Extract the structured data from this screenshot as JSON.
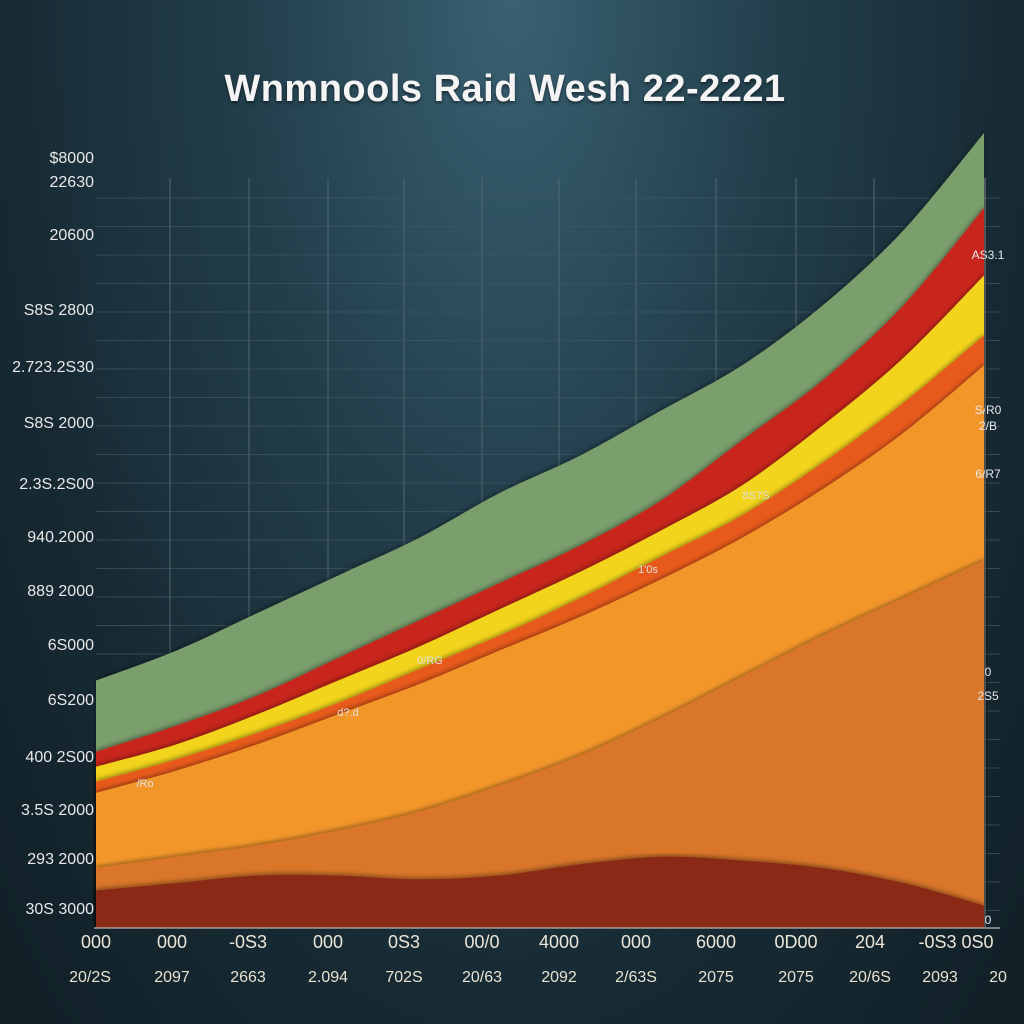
{
  "chart_data": {
    "type": "area",
    "title": "Wnmnools Raid Wesh 22-2221",
    "xlabel": "",
    "ylabel": "",
    "ylim": [
      0,
      10
    ],
    "grid": true,
    "y_tick_labels": [
      "$8000",
      "22630",
      "20600",
      "S8S 2800",
      "2.723.2S30",
      "S8S 2000",
      "2.3S.2S00",
      "940.2000",
      "889 2000",
      "6S000",
      "6S200",
      "400 2S00",
      "3.5S 2000",
      "293 2000",
      "30S 3000"
    ],
    "x_tick_labels": [
      "000",
      "000",
      "-0S3",
      "000",
      "0S3",
      "00/0",
      "4000",
      "000",
      "6000",
      "0D00",
      "204",
      "-0S3 0S0"
    ],
    "x_year_labels": [
      "20/2S",
      "2097",
      "2663",
      "2.094",
      "702S",
      "20/63",
      "2092",
      "2/63S",
      "2075",
      "2075",
      "20/6S",
      "2093",
      "20"
    ],
    "x": [
      0,
      1,
      2,
      3,
      4,
      5,
      6,
      7,
      8,
      9,
      10,
      11
    ],
    "series": [
      {
        "color": "#7a9e6c",
        "values": [
          3.3,
          3.7,
          4.2,
          4.7,
          5.2,
          5.8,
          6.3,
          6.9,
          7.5,
          8.3,
          9.3,
          10.6
        ]
      },
      {
        "color": "#c8261b",
        "values": [
          2.35,
          2.7,
          3.1,
          3.6,
          4.1,
          4.6,
          5.1,
          5.7,
          6.5,
          7.3,
          8.3,
          9.6
        ]
      },
      {
        "color": "#f2d41c",
        "values": [
          2.15,
          2.45,
          2.85,
          3.3,
          3.75,
          4.25,
          4.75,
          5.3,
          5.9,
          6.7,
          7.6,
          8.7
        ]
      },
      {
        "color": "#e85a1c",
        "values": [
          1.95,
          2.25,
          2.6,
          3.0,
          3.45,
          3.9,
          4.4,
          4.95,
          5.5,
          6.2,
          7.0,
          7.9
        ]
      },
      {
        "color": "#f3962a",
        "values": [
          1.8,
          2.1,
          2.45,
          2.85,
          3.25,
          3.7,
          4.15,
          4.65,
          5.2,
          5.85,
          6.6,
          7.5
        ]
      },
      {
        "color": "#d9762a",
        "values": [
          0.8,
          0.95,
          1.1,
          1.3,
          1.55,
          1.9,
          2.3,
          2.8,
          3.35,
          3.9,
          4.4,
          4.9
        ]
      },
      {
        "color": "#8a2c12",
        "values": [
          0.5,
          0.6,
          0.7,
          0.7,
          0.65,
          0.7,
          0.85,
          0.95,
          0.9,
          0.8,
          0.6,
          0.3
        ]
      }
    ],
    "annotations": [
      "/Ro",
      "d?.d",
      "0/RG",
      "1'0s",
      "8S7S"
    ],
    "end_labels": [
      "AS3.1",
      "S/R0",
      "2/B",
      "6/R7",
      "0",
      "2S5",
      "0"
    ]
  }
}
